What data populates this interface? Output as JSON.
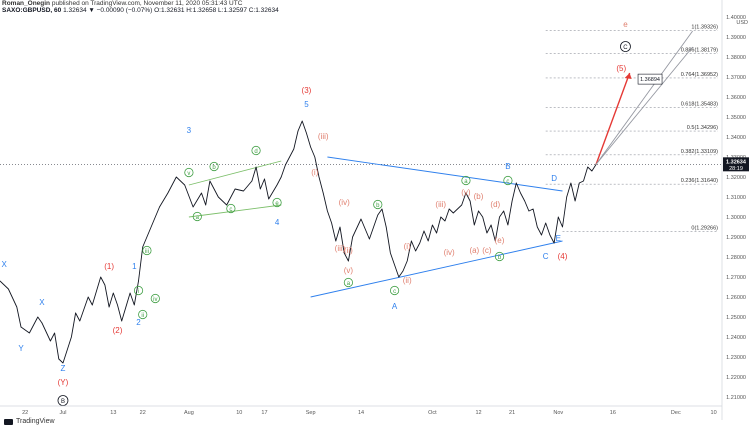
{
  "header": {
    "author": "Roman_Onegin",
    "published_text": "published on TradingView.com, November 11, 2020 05:31:43 UTC",
    "symbol": "SAXO:GBPUSD, 60",
    "quote": "1.32634 ▼ −0.00090 (−0.07%)",
    "ohlc": "O:1.32631 H:1.32658 L:1.32597 C:1.32634"
  },
  "footer": {
    "logo_text": "TradingView"
  },
  "colors": {
    "blue": "#2f80ed",
    "red": "#e53935",
    "green": "#43a047",
    "green_line": "#7cbf6a",
    "pink": "#e08070",
    "projection": "#e53935"
  },
  "chart_data": {
    "type": "line",
    "y_axis": {
      "currency": "USD",
      "ylim": [
        1.2055,
        1.401
      ],
      "ticks": [
        1.21,
        1.22,
        1.23,
        1.24,
        1.25,
        1.26,
        1.27,
        1.28,
        1.29,
        1.3,
        1.31,
        1.32,
        1.33,
        1.34,
        1.35,
        1.36,
        1.37,
        1.38,
        1.39,
        1.4
      ],
      "tick_labels": [
        "1.21000",
        "1.22000",
        "1.23000",
        "1.24000",
        "1.25000",
        "1.26000",
        "1.27000",
        "1.28000",
        "1.29000",
        "1.30000",
        "1.31000",
        "1.32000",
        "1.33000",
        "1.34000",
        "1.35000",
        "1.36000",
        "1.37000",
        "1.38000",
        "1.39000",
        "1.40000"
      ],
      "last_price": "1.32634",
      "last_price_value": 1.32634,
      "countdown": "28:19",
      "target_label": "1.36894",
      "target_value": 1.36894
    },
    "x_axis": {
      "xlim": [
        0,
        172
      ],
      "ticks": [
        {
          "x": 6,
          "label": "22"
        },
        {
          "x": 15,
          "label": "Jul"
        },
        {
          "x": 27,
          "label": "13"
        },
        {
          "x": 34,
          "label": "22"
        },
        {
          "x": 45,
          "label": "Aug"
        },
        {
          "x": 57,
          "label": "10"
        },
        {
          "x": 63,
          "label": "17"
        },
        {
          "x": 74,
          "label": "Sep"
        },
        {
          "x": 86,
          "label": "14"
        },
        {
          "x": 103,
          "label": "Oct"
        },
        {
          "x": 114,
          "label": "12"
        },
        {
          "x": 122,
          "label": "21"
        },
        {
          "x": 133,
          "label": "Nov"
        },
        {
          "x": 146,
          "label": "16"
        },
        {
          "x": 161,
          "label": "Dec"
        },
        {
          "x": 170,
          "label": "10"
        }
      ]
    },
    "series": [
      {
        "points": [
          [
            0,
            1.268
          ],
          [
            2,
            1.264
          ],
          [
            4,
            1.255
          ],
          [
            5,
            1.245
          ],
          [
            7,
            1.242
          ],
          [
            9,
            1.25
          ],
          [
            10,
            1.247
          ],
          [
            12,
            1.238
          ],
          [
            13,
            1.242
          ],
          [
            14,
            1.229
          ],
          [
            15,
            1.227
          ],
          [
            17,
            1.24
          ],
          [
            18,
            1.252
          ],
          [
            19,
            1.248
          ],
          [
            21,
            1.26
          ],
          [
            22,
            1.256
          ],
          [
            24,
            1.27
          ],
          [
            25,
            1.266
          ],
          [
            26,
            1.255
          ],
          [
            27,
            1.262
          ],
          [
            28,
            1.256
          ],
          [
            29,
            1.248
          ],
          [
            31,
            1.262
          ],
          [
            32,
            1.256
          ],
          [
            33,
            1.268
          ],
          [
            34,
            1.285
          ],
          [
            36,
            1.295
          ],
          [
            38,
            1.305
          ],
          [
            40,
            1.312
          ],
          [
            42,
            1.32
          ],
          [
            44,
            1.316
          ],
          [
            46,
            1.305
          ],
          [
            48,
            1.312
          ],
          [
            49,
            1.306
          ],
          [
            50,
            1.318
          ],
          [
            52,
            1.31
          ],
          [
            54,
            1.306
          ],
          [
            56,
            1.314
          ],
          [
            58,
            1.313
          ],
          [
            60,
            1.318
          ],
          [
            61,
            1.325
          ],
          [
            62,
            1.314
          ],
          [
            63,
            1.319
          ],
          [
            64,
            1.309
          ],
          [
            66,
            1.316
          ],
          [
            67,
            1.32
          ],
          [
            68,
            1.326
          ],
          [
            70,
            1.334
          ],
          [
            71,
            1.343
          ],
          [
            72,
            1.348
          ],
          [
            73,
            1.342
          ],
          [
            74,
            1.335
          ],
          [
            75,
            1.33
          ],
          [
            76,
            1.32
          ],
          [
            77,
            1.312
          ],
          [
            78,
            1.303
          ],
          [
            79,
            1.297
          ],
          [
            80,
            1.288
          ],
          [
            81,
            1.295
          ],
          [
            82,
            1.282
          ],
          [
            83,
            1.278
          ],
          [
            84,
            1.29
          ],
          [
            86,
            1.299
          ],
          [
            88,
            1.289
          ],
          [
            90,
            1.301
          ],
          [
            91,
            1.304
          ],
          [
            92,
            1.295
          ],
          [
            93,
            1.282
          ],
          [
            94,
            1.276
          ],
          [
            95,
            1.27
          ],
          [
            96,
            1.273
          ],
          [
            97,
            1.278
          ],
          [
            98,
            1.288
          ],
          [
            99,
            1.283
          ],
          [
            100,
            1.287
          ],
          [
            101,
            1.293
          ],
          [
            102,
            1.288
          ],
          [
            103,
            1.296
          ],
          [
            104,
            1.292
          ],
          [
            105,
            1.3
          ],
          [
            106,
            1.298
          ],
          [
            107,
            1.304
          ],
          [
            108,
            1.302
          ],
          [
            110,
            1.306
          ],
          [
            111,
            1.312
          ],
          [
            112,
            1.308
          ],
          [
            113,
            1.296
          ],
          [
            114,
            1.303
          ],
          [
            115,
            1.3
          ],
          [
            116,
            1.292
          ],
          [
            117,
            1.296
          ],
          [
            118,
            1.288
          ],
          [
            119,
            1.3
          ],
          [
            120,
            1.303
          ],
          [
            121,
            1.296
          ],
          [
            122,
            1.308
          ],
          [
            123,
            1.317
          ],
          [
            124,
            1.312
          ],
          [
            125,
            1.308
          ],
          [
            126,
            1.303
          ],
          [
            127,
            1.304
          ],
          [
            128,
            1.295
          ],
          [
            129,
            1.291
          ],
          [
            130,
            1.297
          ],
          [
            131,
            1.291
          ],
          [
            132,
            1.287
          ],
          [
            133,
            1.3
          ],
          [
            134,
            1.295
          ],
          [
            135,
            1.31
          ],
          [
            136,
            1.317
          ],
          [
            137,
            1.308
          ],
          [
            138,
            1.317
          ],
          [
            139,
            1.318
          ],
          [
            140,
            1.325
          ],
          [
            141,
            1.323
          ],
          [
            142,
            1.3263
          ]
        ]
      }
    ],
    "fib_levels": [
      {
        "ratio": "0",
        "value": 1.29266,
        "label": "0(1.29266)"
      },
      {
        "ratio": "0.236",
        "value": 1.3164,
        "label": "0.236(1.31640)"
      },
      {
        "ratio": "0.382",
        "value": 1.33109,
        "label": "0.382(1.33109)"
      },
      {
        "ratio": "0.5",
        "value": 1.34296,
        "label": "0.5(1.34296)"
      },
      {
        "ratio": "0.618",
        "value": 1.35483,
        "label": "0.618(1.35483)"
      },
      {
        "ratio": "0.764",
        "value": 1.36952,
        "label": "0.764(1.36952)"
      },
      {
        "ratio": "0.886",
        "value": 1.38179,
        "label": "0.886(1.38179)"
      },
      {
        "ratio": "1",
        "value": 1.39326,
        "label": "1(1.39326)"
      }
    ],
    "trend_lines": [
      {
        "name": "triangle-upper",
        "color": "blue",
        "from": [
          78,
          1.33
        ],
        "to": [
          134,
          1.313
        ]
      },
      {
        "name": "triangle-lower",
        "color": "blue",
        "from": [
          74,
          1.26
        ],
        "to": [
          134,
          1.288
        ]
      },
      {
        "name": "green-channel-upper",
        "color": "green",
        "from": [
          45,
          1.316
        ],
        "to": [
          67,
          1.328
        ]
      },
      {
        "name": "green-channel-lower",
        "color": "green",
        "from": [
          45,
          1.3
        ],
        "to": [
          67,
          1.306
        ]
      },
      {
        "name": "projection",
        "color": "red",
        "from": [
          142,
          1.3263
        ],
        "to": [
          150,
          1.372
        ]
      },
      {
        "name": "fan-1",
        "color": "gray",
        "from": [
          142,
          1.3263
        ],
        "to": [
          165,
          1.393
        ]
      },
      {
        "name": "fan-2",
        "color": "gray",
        "from": [
          142,
          1.3263
        ],
        "to": [
          165,
          1.385
        ]
      }
    ],
    "annotations": [
      {
        "text": "X",
        "x": 1,
        "y": 1.275,
        "color": "blue",
        "circle": false
      },
      {
        "text": "Y",
        "x": 5,
        "y": 1.233,
        "color": "blue",
        "circle": false
      },
      {
        "text": "X",
        "x": 10,
        "y": 1.256,
        "color": "blue",
        "circle": false
      },
      {
        "text": "Z",
        "x": 15,
        "y": 1.223,
        "color": "blue",
        "circle": false
      },
      {
        "text": "(Y)",
        "x": 15,
        "y": 1.216,
        "color": "red",
        "circle": false
      },
      {
        "text": "B",
        "x": 15,
        "y": 1.207,
        "color": "black",
        "circle": true
      },
      {
        "text": "(1)",
        "x": 26,
        "y": 1.274,
        "color": "red",
        "circle": false
      },
      {
        "text": "1",
        "x": 32,
        "y": 1.274,
        "color": "blue",
        "circle": false
      },
      {
        "text": "(2)",
        "x": 28,
        "y": 1.242,
        "color": "red",
        "circle": false
      },
      {
        "text": "2",
        "x": 33,
        "y": 1.246,
        "color": "blue",
        "circle": false
      },
      {
        "text": "i",
        "x": 33,
        "y": 1.262,
        "color": "green",
        "circle": true
      },
      {
        "text": "ii",
        "x": 34,
        "y": 1.25,
        "color": "green",
        "circle": true
      },
      {
        "text": "iii",
        "x": 35,
        "y": 1.282,
        "color": "green",
        "circle": true
      },
      {
        "text": "iv",
        "x": 37,
        "y": 1.258,
        "color": "green",
        "circle": true
      },
      {
        "text": "3",
        "x": 45,
        "y": 1.342,
        "color": "blue",
        "circle": false
      },
      {
        "text": "v",
        "x": 45,
        "y": 1.321,
        "color": "green",
        "circle": true
      },
      {
        "text": "a",
        "x": 47,
        "y": 1.299,
        "color": "green",
        "circle": true
      },
      {
        "text": "b",
        "x": 51,
        "y": 1.324,
        "color": "green",
        "circle": true
      },
      {
        "text": "c",
        "x": 55,
        "y": 1.303,
        "color": "green",
        "circle": true
      },
      {
        "text": "d",
        "x": 61,
        "y": 1.332,
        "color": "green",
        "circle": true
      },
      {
        "text": "e",
        "x": 66,
        "y": 1.306,
        "color": "green",
        "circle": true
      },
      {
        "text": "4",
        "x": 66,
        "y": 1.296,
        "color": "blue",
        "circle": false
      },
      {
        "text": "(3)",
        "x": 73,
        "y": 1.362,
        "color": "red",
        "circle": false
      },
      {
        "text": "5",
        "x": 73,
        "y": 1.355,
        "color": "blue",
        "circle": false
      },
      {
        "text": "(iii)",
        "x": 77,
        "y": 1.339,
        "color": "pink",
        "circle": false
      },
      {
        "text": "(i)",
        "x": 75,
        "y": 1.321,
        "color": "pink",
        "circle": false
      },
      {
        "text": "(iv)",
        "x": 82,
        "y": 1.306,
        "color": "pink",
        "circle": false
      },
      {
        "text": "(iii)",
        "x": 81,
        "y": 1.283,
        "color": "pink",
        "circle": false
      },
      {
        "text": "(ii)",
        "x": 83,
        "y": 1.282,
        "color": "pink",
        "circle": false
      },
      {
        "text": "(v)",
        "x": 83,
        "y": 1.272,
        "color": "pink",
        "circle": false
      },
      {
        "text": "a",
        "x": 83,
        "y": 1.266,
        "color": "green",
        "circle": true
      },
      {
        "text": "b",
        "x": 90,
        "y": 1.305,
        "color": "green",
        "circle": true
      },
      {
        "text": "c",
        "x": 94,
        "y": 1.262,
        "color": "green",
        "circle": true
      },
      {
        "text": "A",
        "x": 94,
        "y": 1.254,
        "color": "blue",
        "circle": false
      },
      {
        "text": "(i)",
        "x": 97,
        "y": 1.284,
        "color": "pink",
        "circle": false
      },
      {
        "text": "(ii)",
        "x": 97,
        "y": 1.267,
        "color": "pink",
        "circle": false
      },
      {
        "text": "(iii)",
        "x": 105,
        "y": 1.305,
        "color": "pink",
        "circle": false
      },
      {
        "text": "(iv)",
        "x": 107,
        "y": 1.281,
        "color": "pink",
        "circle": false
      },
      {
        "text": "a",
        "x": 111,
        "y": 1.317,
        "color": "green",
        "circle": true
      },
      {
        "text": "(v)",
        "x": 111,
        "y": 1.311,
        "color": "pink",
        "circle": false
      },
      {
        "text": "(b)",
        "x": 114,
        "y": 1.309,
        "color": "pink",
        "circle": false
      },
      {
        "text": "(a)",
        "x": 113,
        "y": 1.282,
        "color": "pink",
        "circle": false
      },
      {
        "text": "(c)",
        "x": 116,
        "y": 1.282,
        "color": "pink",
        "circle": false
      },
      {
        "text": "(d)",
        "x": 118,
        "y": 1.305,
        "color": "pink",
        "circle": false
      },
      {
        "text": "(e)",
        "x": 119,
        "y": 1.287,
        "color": "pink",
        "circle": false
      },
      {
        "text": "b",
        "x": 119,
        "y": 1.279,
        "color": "green",
        "circle": true
      },
      {
        "text": "B",
        "x": 121,
        "y": 1.324,
        "color": "blue",
        "circle": false
      },
      {
        "text": "c",
        "x": 121,
        "y": 1.317,
        "color": "green",
        "circle": true
      },
      {
        "text": "D",
        "x": 132,
        "y": 1.318,
        "color": "blue",
        "circle": false
      },
      {
        "text": "E",
        "x": 133,
        "y": 1.288,
        "color": "blue",
        "circle": false
      },
      {
        "text": "C",
        "x": 130,
        "y": 1.279,
        "color": "blue",
        "circle": false
      },
      {
        "text": "(4)",
        "x": 134,
        "y": 1.279,
        "color": "red",
        "circle": false
      },
      {
        "text": "(5)",
        "x": 148,
        "y": 1.373,
        "color": "red",
        "circle": false
      },
      {
        "text": "C",
        "x": 149,
        "y": 1.384,
        "color": "black",
        "circle": true
      },
      {
        "text": "e",
        "x": 149,
        "y": 1.395,
        "color": "pink",
        "circle": false
      }
    ]
  }
}
